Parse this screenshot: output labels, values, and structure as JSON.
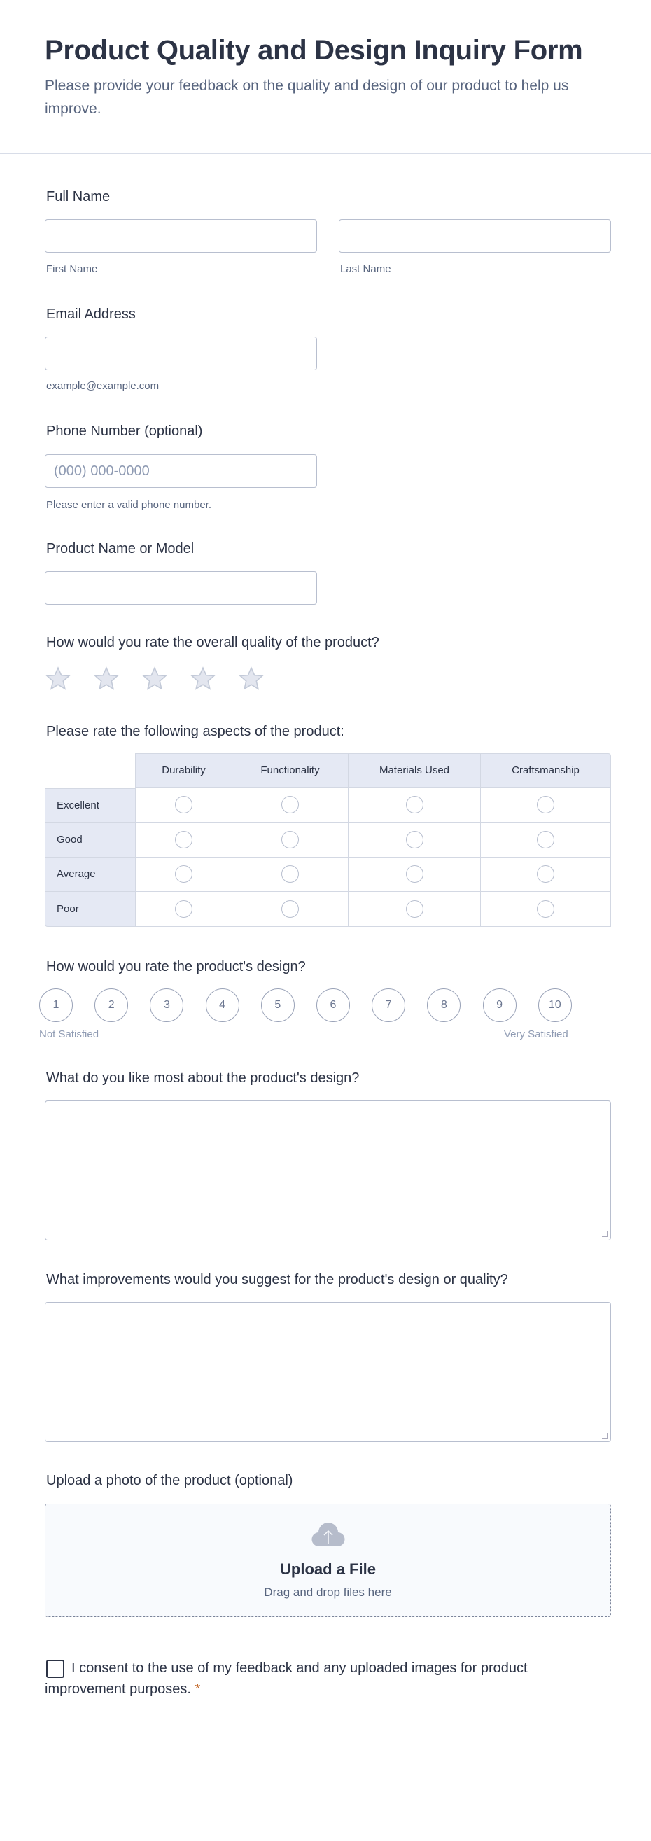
{
  "header": {
    "title": "Product Quality and Design Inquiry Form",
    "subtitle": "Please provide your feedback on the quality and design of our product to help us improve."
  },
  "full_name": {
    "label": "Full Name",
    "first_sublabel": "First Name",
    "last_sublabel": "Last Name",
    "first_value": "",
    "last_value": ""
  },
  "email": {
    "label": "Email Address",
    "sublabel": "example@example.com",
    "value": ""
  },
  "phone": {
    "label": "Phone Number (optional)",
    "placeholder": "(000) 000-0000",
    "sublabel": "Please enter a valid phone number."
  },
  "product": {
    "label": "Product Name or Model",
    "value": ""
  },
  "quality_rating": {
    "label": "How would you rate the overall quality of the product?",
    "max_stars": 5,
    "selected": 0,
    "icon": "star-icon"
  },
  "matrix": {
    "label": "Please rate the following aspects of the product:",
    "columns": [
      "Durability",
      "Functionality",
      "Materials Used",
      "Craftsmanship"
    ],
    "rows": [
      "Excellent",
      "Good",
      "Average",
      "Poor"
    ]
  },
  "design_rating": {
    "label": "How would you rate the product's design?",
    "options": [
      "1",
      "2",
      "3",
      "4",
      "5",
      "6",
      "7",
      "8",
      "9",
      "10"
    ],
    "min_label": "Not Satisfied",
    "max_label": "Very Satisfied"
  },
  "like_most": {
    "label": "What do you like most about the product's design?",
    "value": ""
  },
  "improvements": {
    "label": "What improvements would you suggest for the product's design or quality?",
    "value": ""
  },
  "upload": {
    "label": "Upload a photo of the product (optional)",
    "button": "Upload a File",
    "hint": "Drag and drop files here",
    "icon": "cloud-upload-icon"
  },
  "consent": {
    "text": "I consent to the use of my feedback and any uploaded images for product improvement purposes.",
    "required_mark": "*",
    "checked": false
  },
  "colors": {
    "text": "#2c3345",
    "muted": "#57647e",
    "border": "#b8bfcf",
    "header_bg": "#e5e9f4",
    "required": "#c4692b"
  }
}
